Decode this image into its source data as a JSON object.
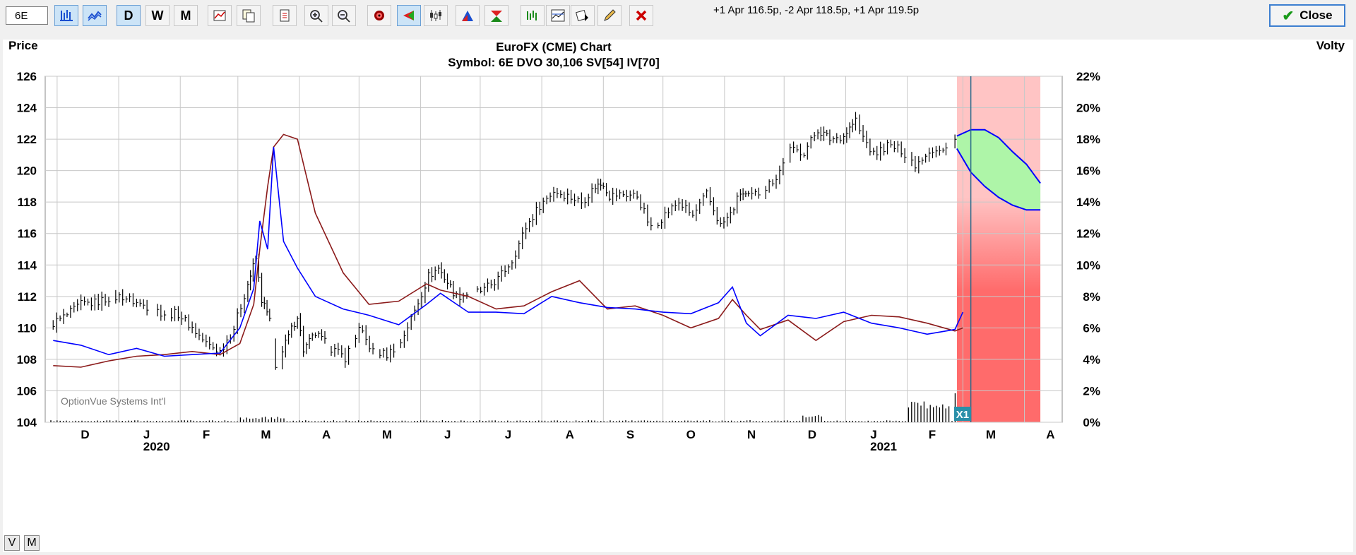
{
  "toolbar": {
    "symbol_value": "6E",
    "buttons": [
      {
        "name": "bar-chart-mode-button",
        "label": "",
        "icon": "bar-chart-icon",
        "active": true
      },
      {
        "name": "line-chart-mode-button",
        "label": "",
        "icon": "line-chart-icon",
        "active": true
      },
      {
        "name": "daily-button",
        "label": "D",
        "icon": "",
        "active": true
      },
      {
        "name": "weekly-button",
        "label": "W",
        "icon": "",
        "active": false
      },
      {
        "name": "monthly-button",
        "label": "M",
        "icon": "",
        "active": false
      },
      {
        "name": "chart-settings-button",
        "label": "",
        "icon": "chart-settings-icon",
        "active": false
      },
      {
        "name": "copy-button",
        "label": "",
        "icon": "copy-icon",
        "active": false
      },
      {
        "name": "print-button",
        "label": "",
        "icon": "print-icon",
        "active": false
      },
      {
        "name": "zoom-in-button",
        "label": "",
        "icon": "zoom-in-icon",
        "active": false
      },
      {
        "name": "zoom-out-button",
        "label": "",
        "icon": "zoom-out-icon",
        "active": false
      },
      {
        "name": "target-button",
        "label": "",
        "icon": "target-icon",
        "active": false
      },
      {
        "name": "cursor-button",
        "label": "",
        "icon": "cursor-icon",
        "active": true
      },
      {
        "name": "candles-button",
        "label": "",
        "icon": "candles-icon",
        "active": false
      },
      {
        "name": "volume-profile-button",
        "label": "",
        "icon": "volume-profile-icon",
        "active": false
      },
      {
        "name": "arrows-button",
        "label": "",
        "icon": "up-down-arrows-icon",
        "active": false
      },
      {
        "name": "studies-button",
        "label": "",
        "icon": "studies-icon",
        "active": false
      },
      {
        "name": "indicators-button",
        "label": "",
        "icon": "indicators-icon",
        "active": false
      },
      {
        "name": "paint-button",
        "label": "",
        "icon": "paint-icon",
        "active": false
      },
      {
        "name": "draw-button",
        "label": "",
        "icon": "pencil-icon",
        "active": false
      },
      {
        "name": "delete-button",
        "label": "",
        "icon": "delete-icon",
        "active": false
      }
    ],
    "strategy_text": "+1 Apr 116.5p, -2 Apr 118.5p, +1 Apr 119.5p",
    "close_label": "Close"
  },
  "bottom_buttons": {
    "v_label": "V",
    "m_label": "M"
  },
  "colors": {
    "price": "#000000",
    "implied_vol": "#0000ff",
    "statistical_vol": "#8b1a1a",
    "projection_fill_top": "#ffc4c4",
    "projection_fill_bottom": "#ff6b6b",
    "vol_cone": "#aef5a8",
    "grid": "#c8c8c8"
  },
  "chart_data": {
    "type": "bar",
    "title": "EuroFX (CME) Chart",
    "subtitle": "Symbol:  6E   DVO 30,106   SV[54]   IV[70]",
    "watermark": "OptionVue Systems Int'l",
    "projection_marker": "X1",
    "ylabel_left": "Price",
    "ylabel_right": "Volty",
    "ylim_left": [
      104,
      126
    ],
    "ylim_right": [
      0,
      22
    ],
    "left_ticks": [
      "104",
      "106",
      "108",
      "110",
      "112",
      "114",
      "116",
      "118",
      "120",
      "122",
      "124",
      "126"
    ],
    "right_ticks": [
      "0%",
      "2%",
      "4%",
      "6%",
      "8%",
      "10%",
      "12%",
      "14%",
      "16%",
      "18%",
      "20%",
      "22%"
    ],
    "x_months": [
      {
        "label": "D",
        "year": ""
      },
      {
        "label": "J",
        "year": "2020"
      },
      {
        "label": "F",
        "year": ""
      },
      {
        "label": "M",
        "year": ""
      },
      {
        "label": "A",
        "year": ""
      },
      {
        "label": "M",
        "year": ""
      },
      {
        "label": "J",
        "year": ""
      },
      {
        "label": "J",
        "year": ""
      },
      {
        "label": "A",
        "year": ""
      },
      {
        "label": "S",
        "year": ""
      },
      {
        "label": "O",
        "year": ""
      },
      {
        "label": "N",
        "year": ""
      },
      {
        "label": "D",
        "year": ""
      },
      {
        "label": "J",
        "year": "2021"
      },
      {
        "label": "F",
        "year": ""
      },
      {
        "label": "M",
        "year": ""
      },
      {
        "label": "A",
        "year": ""
      }
    ],
    "price_closes": [
      [
        "2019-11-29",
        110.3
      ],
      [
        "2019-12-06",
        110.8
      ],
      [
        "2019-12-13",
        111.5
      ],
      [
        "2019-12-20",
        111.6
      ],
      [
        "2019-12-27",
        111.9
      ],
      [
        "2020-01-03",
        112.0
      ],
      [
        "2020-01-10",
        111.6
      ],
      [
        "2020-01-17",
        111.3
      ],
      [
        "2020-01-24",
        110.9
      ],
      [
        "2020-01-31",
        110.9
      ],
      [
        "2020-02-07",
        110.0
      ],
      [
        "2020-02-14",
        109.0
      ],
      [
        "2020-02-21",
        108.5
      ],
      [
        "2020-02-28",
        110.0
      ],
      [
        "2020-03-06",
        112.8
      ],
      [
        "2020-03-10",
        114.4
      ],
      [
        "2020-03-13",
        111.8
      ],
      [
        "2020-03-17",
        110.5
      ],
      [
        "2020-03-20",
        107.4
      ],
      [
        "2020-03-25",
        109.0
      ],
      [
        "2020-03-31",
        110.8
      ],
      [
        "2020-04-03",
        108.6
      ],
      [
        "2020-04-09",
        109.6
      ],
      [
        "2020-04-17",
        108.7
      ],
      [
        "2020-04-24",
        108.1
      ],
      [
        "2020-05-01",
        109.9
      ],
      [
        "2020-05-08",
        108.5
      ],
      [
        "2020-05-15",
        108.3
      ],
      [
        "2020-05-22",
        109.1
      ],
      [
        "2020-05-29",
        111.1
      ],
      [
        "2020-06-05",
        113.3
      ],
      [
        "2020-06-10",
        113.8
      ],
      [
        "2020-06-19",
        112.0
      ],
      [
        "2020-06-26",
        112.2
      ],
      [
        "2020-07-03",
        112.4
      ],
      [
        "2020-07-10",
        113.1
      ],
      [
        "2020-07-17",
        114.3
      ],
      [
        "2020-07-24",
        116.4
      ],
      [
        "2020-07-31",
        117.8
      ],
      [
        "2020-08-07",
        118.7
      ],
      [
        "2020-08-14",
        118.4
      ],
      [
        "2020-08-21",
        118.0
      ],
      [
        "2020-08-28",
        119.0
      ],
      [
        "2020-09-01",
        119.2
      ],
      [
        "2020-09-04",
        118.4
      ],
      [
        "2020-09-11",
        118.5
      ],
      [
        "2020-09-18",
        118.4
      ],
      [
        "2020-09-25",
        116.3
      ],
      [
        "2020-10-02",
        117.2
      ],
      [
        "2020-10-09",
        118.0
      ],
      [
        "2020-10-16",
        117.1
      ],
      [
        "2020-10-23",
        118.5
      ],
      [
        "2020-10-30",
        116.5
      ],
      [
        "2020-11-04",
        117.2
      ],
      [
        "2020-11-09",
        118.6
      ],
      [
        "2020-11-13",
        118.3
      ],
      [
        "2020-11-20",
        118.7
      ],
      [
        "2020-11-27",
        119.6
      ],
      [
        "2020-12-04",
        121.3
      ],
      [
        "2020-12-11",
        121.2
      ],
      [
        "2020-12-18",
        122.6
      ],
      [
        "2020-12-24",
        122.0
      ],
      [
        "2020-12-31",
        122.2
      ],
      [
        "2021-01-06",
        123.2
      ],
      [
        "2021-01-08",
        122.5
      ],
      [
        "2021-01-15",
        121.0
      ],
      [
        "2021-01-22",
        121.6
      ],
      [
        "2021-01-29",
        121.3
      ],
      [
        "2021-02-05",
        120.4
      ],
      [
        "2021-02-12",
        121.3
      ],
      [
        "2021-02-19",
        121.2
      ],
      [
        "2021-02-25",
        121.9
      ],
      [
        "2021-02-26",
        121.2
      ]
    ],
    "series": [
      {
        "name": "IV",
        "x": [
          "2019-11-29",
          "2019-12-13",
          "2019-12-27",
          "2020-01-10",
          "2020-01-24",
          "2020-02-07",
          "2020-02-21",
          "2020-03-02",
          "2020-03-09",
          "2020-03-12",
          "2020-03-16",
          "2020-03-19",
          "2020-03-24",
          "2020-03-31",
          "2020-04-09",
          "2020-04-23",
          "2020-05-06",
          "2020-05-21",
          "2020-06-04",
          "2020-06-11",
          "2020-06-25",
          "2020-07-09",
          "2020-07-23",
          "2020-08-06",
          "2020-08-20",
          "2020-09-03",
          "2020-09-17",
          "2020-10-01",
          "2020-10-15",
          "2020-10-29",
          "2020-11-05",
          "2020-11-12",
          "2020-11-19",
          "2020-12-03",
          "2020-12-17",
          "2020-12-31",
          "2021-01-14",
          "2021-01-28",
          "2021-02-11",
          "2021-02-25",
          "2021-03-01"
        ],
        "values": [
          5.2,
          4.9,
          4.3,
          4.7,
          4.2,
          4.3,
          4.4,
          6.0,
          8.5,
          12.8,
          11.0,
          17.5,
          11.5,
          9.8,
          8.0,
          7.2,
          6.8,
          6.2,
          7.5,
          8.2,
          7.0,
          7.0,
          6.9,
          8.0,
          7.6,
          7.3,
          7.2,
          7.0,
          6.9,
          7.6,
          8.6,
          6.3,
          5.5,
          6.8,
          6.6,
          7.0,
          6.3,
          6.0,
          5.6,
          5.9,
          7.0
        ]
      },
      {
        "name": "SV",
        "x": [
          "2019-11-29",
          "2019-12-13",
          "2019-12-27",
          "2020-01-10",
          "2020-01-24",
          "2020-02-07",
          "2020-02-21",
          "2020-03-02",
          "2020-03-09",
          "2020-03-12",
          "2020-03-16",
          "2020-03-19",
          "2020-03-24",
          "2020-03-31",
          "2020-04-09",
          "2020-04-23",
          "2020-05-06",
          "2020-05-21",
          "2020-06-04",
          "2020-06-11",
          "2020-06-25",
          "2020-07-09",
          "2020-07-23",
          "2020-08-06",
          "2020-08-20",
          "2020-09-03",
          "2020-09-17",
          "2020-10-01",
          "2020-10-15",
          "2020-10-29",
          "2020-11-05",
          "2020-11-12",
          "2020-11-19",
          "2020-12-03",
          "2020-12-17",
          "2020-12-31",
          "2021-01-14",
          "2021-01-28",
          "2021-02-11",
          "2021-02-25",
          "2021-03-01"
        ],
        "values": [
          3.6,
          3.5,
          3.9,
          4.2,
          4.3,
          4.5,
          4.3,
          5.0,
          7.5,
          11.0,
          15.0,
          17.5,
          18.3,
          18.0,
          13.3,
          9.5,
          7.5,
          7.7,
          8.8,
          8.4,
          8.0,
          7.2,
          7.4,
          8.3,
          9.0,
          7.2,
          7.4,
          6.8,
          6.0,
          6.6,
          7.8,
          6.8,
          5.9,
          6.5,
          5.2,
          6.4,
          6.8,
          6.7,
          6.3,
          5.8,
          6.0
        ]
      }
    ],
    "volatility_projection": {
      "start": "2021-02-26",
      "end": "2021-04-09",
      "upper": [
        18.2,
        18.6,
        18.6,
        18.1,
        17.2,
        16.4,
        15.2
      ],
      "lower": [
        17.4,
        15.9,
        15.0,
        14.3,
        13.8,
        13.5,
        13.5
      ]
    }
  }
}
